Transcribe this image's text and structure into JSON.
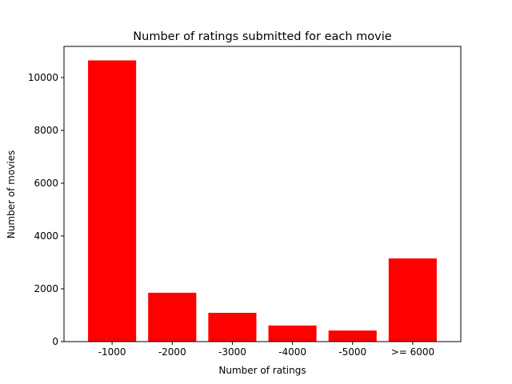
{
  "chart_data": {
    "type": "bar",
    "title": "Number of ratings submitted for each movie",
    "xlabel": "Number of ratings",
    "ylabel": "Number of movies",
    "categories": [
      "-1000",
      "-2000",
      "-3000",
      "-4000",
      "-5000",
      ">= 6000"
    ],
    "values": [
      10650,
      1850,
      1090,
      610,
      420,
      3150
    ],
    "ylim": [
      0,
      11180
    ],
    "yticks": [
      0,
      2000,
      4000,
      6000,
      8000,
      10000
    ],
    "bar_color": "#ff0000",
    "grid": false,
    "legend": "none"
  }
}
